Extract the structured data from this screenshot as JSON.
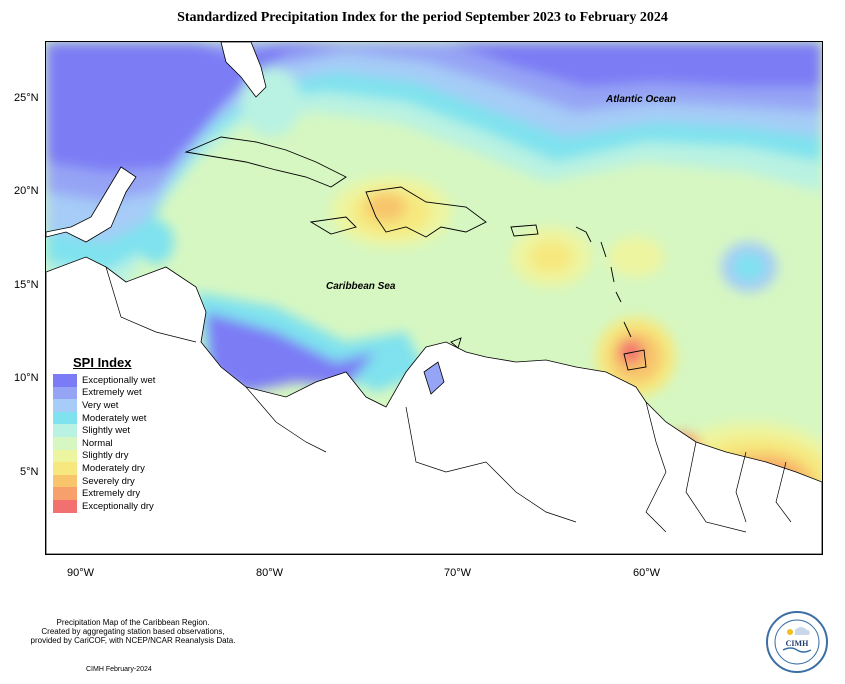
{
  "title": "Standardized Precipitation Index for the period September 2023 to February 2024",
  "map": {
    "lat_ticks": [
      "25°N",
      "20°N",
      "15°N",
      "10°N",
      "5°N"
    ],
    "lon_ticks": [
      "90°W",
      "80°W",
      "70°W",
      "60°W"
    ],
    "labels": {
      "atlantic": "Atlantic Ocean",
      "caribbean": "Caribbean Sea"
    }
  },
  "legend": {
    "title": "SPI Index",
    "items": [
      {
        "label": "Exceptionally wet",
        "color": "#7b7bf5"
      },
      {
        "label": "Extremely wet",
        "color": "#96a4f5"
      },
      {
        "label": "Very wet",
        "color": "#a6ccf7"
      },
      {
        "label": "Moderately wet",
        "color": "#7fe2ee"
      },
      {
        "label": "Slightly wet",
        "color": "#b9f2e2"
      },
      {
        "label": "Normal",
        "color": "#d6f7c2"
      },
      {
        "label": "Slightly dry",
        "color": "#eef5a0"
      },
      {
        "label": "Moderately dry",
        "color": "#f6e87e"
      },
      {
        "label": "Severely dry",
        "color": "#f8c46c"
      },
      {
        "label": "Extremely dry",
        "color": "#f8a06c"
      },
      {
        "label": "Exceptionally dry",
        "color": "#f27070"
      }
    ]
  },
  "footer": {
    "line1": "Precipitation Map of the Caribbean Region.",
    "line2": "Created by aggregating station based observations,",
    "line3": "provided by CariCOF, with NCEP/NCAR Reanalysis Data.",
    "date": "CIMH February-2024"
  },
  "logo": {
    "text": "CIMH"
  }
}
